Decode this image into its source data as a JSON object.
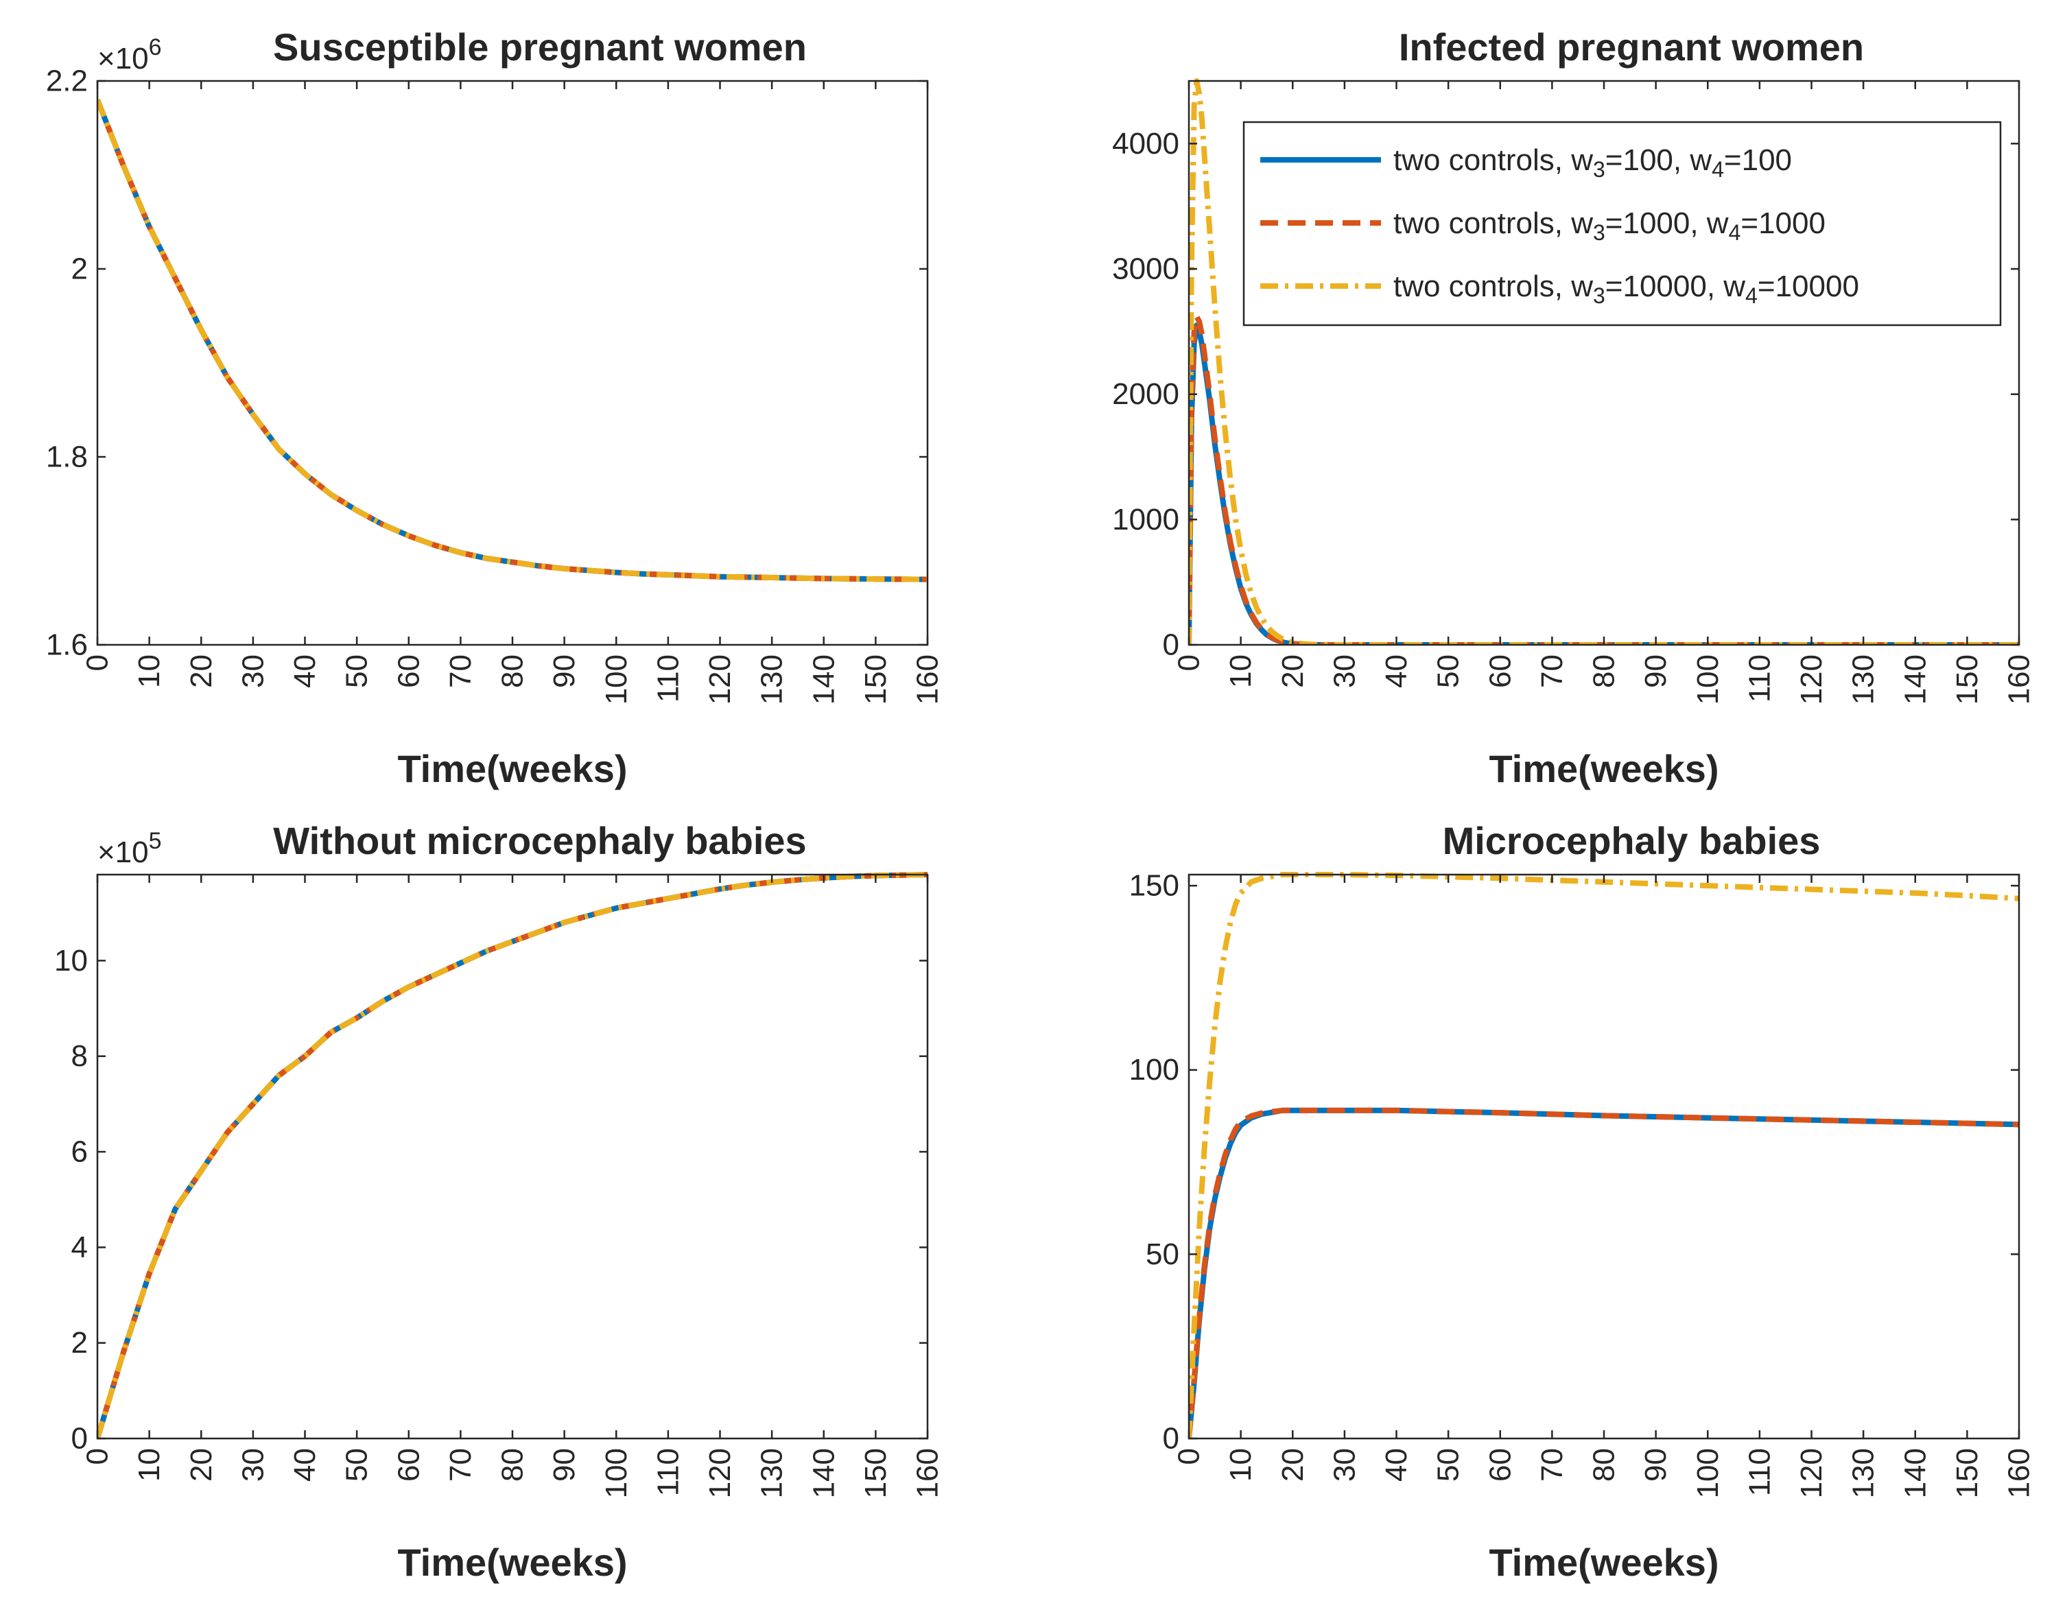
{
  "colors": {
    "blue": "#0072BD",
    "orange": "#D95319",
    "yellow": "#EDB120",
    "axis": "#262626"
  },
  "chart_data": [
    {
      "type": "line",
      "title": "Susceptible pregnant women",
      "xlabel": "Time(weeks)",
      "ylabel": "",
      "xlim": [
        0,
        160
      ],
      "ylim": [
        1600000,
        2200000
      ],
      "xticks": [
        0,
        10,
        20,
        30,
        40,
        50,
        60,
        70,
        80,
        90,
        100,
        110,
        120,
        130,
        140,
        150,
        160
      ],
      "xtick_labels": [
        "0",
        "10",
        "20",
        "30",
        "40",
        "50",
        "60",
        "70",
        "80",
        "90",
        "100",
        "110",
        "120",
        "130",
        "140",
        "150",
        "160"
      ],
      "yticks": [
        1600000,
        1800000,
        2000000,
        2200000
      ],
      "ytick_labels": [
        "1.6",
        "1.8",
        "2",
        "2.2"
      ],
      "y_exponent": {
        "base": "×10",
        "power": "6"
      },
      "x": [
        0,
        5,
        10,
        15,
        20,
        25,
        30,
        35,
        40,
        45,
        50,
        55,
        60,
        65,
        70,
        75,
        80,
        85,
        90,
        95,
        100,
        105,
        110,
        115,
        120,
        125,
        130,
        135,
        140,
        145,
        150,
        155,
        160
      ],
      "series": [
        {
          "name": "two controls, w3=100, w4=100",
          "color": "blue",
          "dash": "solid",
          "values": [
            2180000,
            2110000,
            2045000,
            1990000,
            1935000,
            1885000,
            1845000,
            1808000,
            1782000,
            1760000,
            1743000,
            1728000,
            1716000,
            1706000,
            1698000,
            1692000,
            1688000,
            1684000,
            1681000,
            1679000,
            1677000,
            1675500,
            1674500,
            1673500,
            1672500,
            1672000,
            1671500,
            1671000,
            1670500,
            1670200,
            1670000,
            1669800,
            1669600
          ]
        },
        {
          "name": "two controls, w3=1000, w4=1000",
          "color": "orange",
          "dash": "dash",
          "values": [
            2180000,
            2110000,
            2045000,
            1990000,
            1935000,
            1885000,
            1845000,
            1808000,
            1782000,
            1760000,
            1743000,
            1728000,
            1716000,
            1706000,
            1698000,
            1692000,
            1688000,
            1684000,
            1681000,
            1679000,
            1677000,
            1675500,
            1674500,
            1673500,
            1672500,
            1672000,
            1671500,
            1671000,
            1670500,
            1670200,
            1670000,
            1669800,
            1669600
          ]
        },
        {
          "name": "two controls, w3=10000, w4=10000",
          "color": "yellow",
          "dash": "dashdot",
          "values": [
            2180000,
            2110000,
            2045000,
            1990000,
            1935000,
            1885000,
            1845000,
            1808000,
            1782000,
            1760000,
            1743000,
            1728000,
            1716000,
            1706000,
            1698000,
            1692000,
            1688000,
            1684000,
            1681000,
            1679000,
            1677000,
            1675500,
            1674500,
            1673500,
            1672500,
            1672000,
            1671500,
            1671000,
            1670500,
            1670200,
            1670000,
            1669800,
            1669600
          ]
        }
      ]
    },
    {
      "type": "line",
      "title": "Infected pregnant women",
      "xlabel": "Time(weeks)",
      "ylabel": "",
      "xlim": [
        0,
        160
      ],
      "ylim": [
        0,
        4500
      ],
      "xticks": [
        0,
        10,
        20,
        30,
        40,
        50,
        60,
        70,
        80,
        90,
        100,
        110,
        120,
        130,
        140,
        150,
        160
      ],
      "xtick_labels": [
        "0",
        "10",
        "20",
        "30",
        "40",
        "50",
        "60",
        "70",
        "80",
        "90",
        "100",
        "110",
        "120",
        "130",
        "140",
        "150",
        "160"
      ],
      "yticks": [
        0,
        1000,
        2000,
        3000,
        4000
      ],
      "ytick_labels": [
        "0",
        "1000",
        "2000",
        "3000",
        "4000"
      ],
      "legend": {
        "location": "top-right",
        "entries": [
          {
            "pre": "two controls, w",
            "sub1": "3",
            "mid": "=100, w",
            "sub2": "4",
            "post": "=100"
          },
          {
            "pre": "two controls, w",
            "sub1": "3",
            "mid": "=1000, w",
            "sub2": "4",
            "post": "=1000"
          },
          {
            "pre": "two controls, w",
            "sub1": "3",
            "mid": "=10000, w",
            "sub2": "4",
            "post": "=10000"
          }
        ]
      },
      "x": [
        0,
        0.5,
        1,
        1.5,
        2,
        2.5,
        3,
        4,
        5,
        6,
        7,
        8,
        9,
        10,
        11,
        12,
        13,
        14,
        15,
        16,
        17,
        18,
        19,
        20,
        22,
        24,
        26,
        30,
        40,
        60,
        80,
        100,
        120,
        140,
        160
      ],
      "series": [
        {
          "name": "two controls, w3=100, w4=100",
          "color": "blue",
          "dash": "solid",
          "values": [
            0,
            1800,
            2400,
            2550,
            2500,
            2400,
            2250,
            1950,
            1600,
            1300,
            1030,
            800,
            610,
            450,
            330,
            240,
            170,
            120,
            80,
            55,
            35,
            22,
            14,
            8,
            3,
            1,
            0,
            0,
            0,
            0,
            0,
            0,
            0,
            0,
            0
          ]
        },
        {
          "name": "two controls, w3=1000, w4=1000",
          "color": "orange",
          "dash": "dash",
          "values": [
            0,
            1900,
            2500,
            2620,
            2580,
            2480,
            2320,
            2000,
            1650,
            1340,
            1060,
            820,
            630,
            470,
            345,
            250,
            178,
            125,
            85,
            58,
            38,
            24,
            15,
            9,
            3,
            1,
            0,
            0,
            0,
            0,
            0,
            0,
            0,
            0,
            0
          ]
        },
        {
          "name": "two controls, w3=10000, w4=10000",
          "color": "yellow",
          "dash": "dashdot",
          "values": [
            0,
            3000,
            4300,
            4500,
            4400,
            4200,
            3900,
            3300,
            2700,
            2150,
            1700,
            1320,
            1000,
            760,
            560,
            410,
            300,
            215,
            150,
            105,
            72,
            48,
            32,
            20,
            8,
            3,
            1,
            0,
            0,
            0,
            0,
            0,
            0,
            0,
            0
          ]
        }
      ]
    },
    {
      "type": "line",
      "title": "Without microcephaly babies",
      "xlabel": "Time(weeks)",
      "ylabel": "",
      "xlim": [
        0,
        160
      ],
      "ylim": [
        0,
        1180000
      ],
      "xticks": [
        0,
        10,
        20,
        30,
        40,
        50,
        60,
        70,
        80,
        90,
        100,
        110,
        120,
        130,
        140,
        150,
        160
      ],
      "xtick_labels": [
        "0",
        "10",
        "20",
        "30",
        "40",
        "50",
        "60",
        "70",
        "80",
        "90",
        "100",
        "110",
        "120",
        "130",
        "140",
        "150",
        "160"
      ],
      "yticks": [
        0,
        200000,
        400000,
        600000,
        800000,
        1000000
      ],
      "ytick_labels": [
        "0",
        "2",
        "4",
        "6",
        "8",
        "10"
      ],
      "y_exponent": {
        "base": "×10",
        "power": "5"
      },
      "x": [
        0,
        5,
        10,
        15,
        20,
        25,
        30,
        35,
        40,
        45,
        50,
        55,
        60,
        65,
        70,
        75,
        80,
        85,
        90,
        95,
        100,
        105,
        110,
        115,
        120,
        125,
        130,
        135,
        140,
        145,
        150,
        155,
        160
      ],
      "series": [
        {
          "name": "two controls, w3=100, w4=100",
          "color": "blue",
          "dash": "solid",
          "values": [
            0,
            180000,
            345000,
            480000,
            560000,
            640000,
            700000,
            760000,
            800000,
            850000,
            880000,
            915000,
            945000,
            970000,
            995000,
            1020000,
            1040000,
            1060000,
            1080000,
            1095000,
            1110000,
            1120000,
            1130000,
            1140000,
            1150000,
            1158000,
            1164000,
            1169000,
            1173000,
            1176000,
            1178000,
            1179000,
            1180000
          ]
        },
        {
          "name": "two controls, w3=1000, w4=1000",
          "color": "orange",
          "dash": "dash",
          "values": [
            0,
            180000,
            345000,
            480000,
            560000,
            640000,
            700000,
            760000,
            800000,
            850000,
            880000,
            915000,
            945000,
            970000,
            995000,
            1020000,
            1040000,
            1060000,
            1080000,
            1095000,
            1110000,
            1120000,
            1130000,
            1140000,
            1150000,
            1158000,
            1164000,
            1169000,
            1173000,
            1176000,
            1178000,
            1179000,
            1180000
          ]
        },
        {
          "name": "two controls, w3=10000, w4=10000",
          "color": "yellow",
          "dash": "dashdot",
          "values": [
            0,
            180000,
            345000,
            480000,
            560000,
            640000,
            700000,
            760000,
            800000,
            850000,
            880000,
            915000,
            945000,
            970000,
            995000,
            1020000,
            1040000,
            1060000,
            1080000,
            1095000,
            1110000,
            1120000,
            1130000,
            1140000,
            1150000,
            1158000,
            1164000,
            1169000,
            1173000,
            1176000,
            1178000,
            1179000,
            1180000
          ]
        }
      ]
    },
    {
      "type": "line",
      "title": "Microcephaly babies",
      "xlabel": "Time(weeks)",
      "ylabel": "",
      "xlim": [
        0,
        160
      ],
      "ylim": [
        0,
        153
      ],
      "xticks": [
        0,
        10,
        20,
        30,
        40,
        50,
        60,
        70,
        80,
        90,
        100,
        110,
        120,
        130,
        140,
        150,
        160
      ],
      "xtick_labels": [
        "0",
        "10",
        "20",
        "30",
        "40",
        "50",
        "60",
        "70",
        "80",
        "90",
        "100",
        "110",
        "120",
        "130",
        "140",
        "150",
        "160"
      ],
      "yticks": [
        0,
        50,
        100,
        150
      ],
      "ytick_labels": [
        "0",
        "50",
        "100",
        "150"
      ],
      "x": [
        0,
        1,
        2,
        3,
        4,
        5,
        6,
        7,
        8,
        9,
        10,
        12,
        14,
        16,
        18,
        20,
        25,
        30,
        40,
        50,
        60,
        70,
        80,
        90,
        100,
        110,
        120,
        130,
        140,
        150,
        160
      ],
      "series": [
        {
          "name": "two controls, w3=100, w4=100",
          "color": "blue",
          "dash": "solid",
          "values": [
            0,
            15,
            32,
            46,
            57,
            65,
            71,
            76,
            80,
            83,
            85,
            87,
            88,
            88.5,
            89,
            89,
            89,
            89,
            89,
            88.7,
            88.4,
            88,
            87.6,
            87.3,
            87,
            86.7,
            86.4,
            86.1,
            85.8,
            85.5,
            85.2
          ]
        },
        {
          "name": "two controls, w3=1000, w4=1000",
          "color": "orange",
          "dash": "dash",
          "values": [
            0,
            16,
            33,
            47,
            58,
            66,
            72,
            77,
            81,
            84,
            86,
            87.5,
            88.3,
            88.7,
            89,
            89,
            89,
            89,
            89,
            88.7,
            88.4,
            88,
            87.6,
            87.3,
            87,
            86.7,
            86.4,
            86.1,
            85.8,
            85.5,
            85.2
          ]
        },
        {
          "name": "two controls, w3=10000, w4=10000",
          "color": "yellow",
          "dash": "dashdot",
          "values": [
            0,
            30,
            57,
            79,
            97,
            112,
            124,
            133,
            140,
            145,
            148,
            151,
            152,
            152.5,
            153,
            153,
            153,
            153,
            152.8,
            152.4,
            152,
            151.5,
            151,
            150.5,
            150,
            149.5,
            149,
            148.5,
            148,
            147.3,
            146.5
          ]
        }
      ]
    }
  ]
}
